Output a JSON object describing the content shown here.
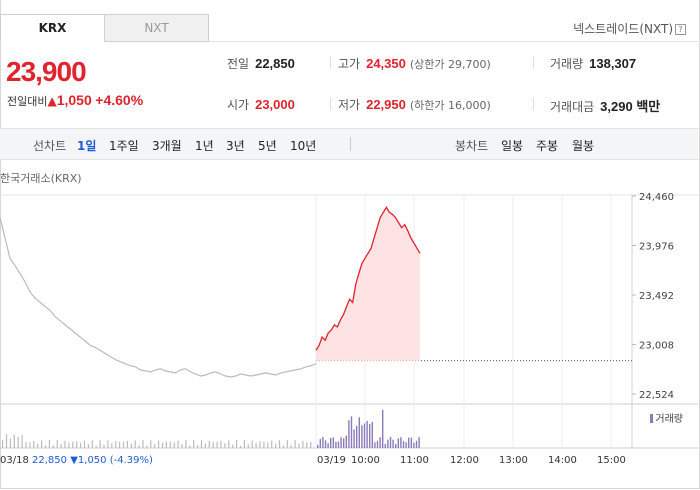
{
  "tabs": [
    {
      "label": "KRX",
      "active": true
    },
    {
      "label": "NXT",
      "active": false
    }
  ],
  "nxt_link": {
    "label": "넥스트레이드(NXT)",
    "help_icon": "question-icon"
  },
  "price": {
    "current": "23,900",
    "change_label": "전일대비",
    "change_icon": "up-triangle-icon",
    "change_amount": "1,050",
    "change_pct": "+4.60%"
  },
  "stats": {
    "prev_close": {
      "label": "전일",
      "value": "22,850"
    },
    "high": {
      "label": "고가",
      "value": "24,350",
      "sub": "(상한가 29,700)"
    },
    "volume": {
      "label": "거래량",
      "value": "138,307"
    },
    "open": {
      "label": "시가",
      "value": "23,000"
    },
    "low": {
      "label": "저가",
      "value": "22,950",
      "sub": "(하한가 16,000)"
    },
    "amount": {
      "label": "거래대금",
      "value": "3,290 백만"
    }
  },
  "toolbar": {
    "line_label": "선차트",
    "periods": [
      "1일",
      "1주일",
      "3개월",
      "1년",
      "3년",
      "5년",
      "10년"
    ],
    "active_period": "1일",
    "candle_label": "봉차트",
    "candles": [
      "일봉",
      "주봉",
      "월봉"
    ]
  },
  "exchange_label": "한국거래소(KRX)",
  "colors": {
    "up": "#e0232d",
    "down": "#1f5bd6",
    "prev_line": "#bbbbbb",
    "volume": "#8a7ab8"
  },
  "prev_day": {
    "date": "03/18",
    "close": "22,850",
    "change_icon": "down-triangle-icon",
    "change": "1,050",
    "change_pct": "(-4.39%)"
  },
  "volume_legend": "거래량",
  "chart_data": {
    "type": "line",
    "y_ticks": [
      "24,460",
      "23,976",
      "23,492",
      "23,008",
      "22,524"
    ],
    "ylim": [
      22524,
      24460
    ],
    "x_labels": [
      "03/19",
      "10:00",
      "11:00",
      "12:00",
      "13:00",
      "14:00",
      "15:00"
    ],
    "series": [
      {
        "name": "03/18",
        "values": [
          24250,
          24050,
          23850,
          23780,
          23700,
          23620,
          23520,
          23460,
          23420,
          23380,
          23340,
          23280,
          23240,
          23200,
          23160,
          23120,
          23080,
          23040,
          23000,
          22980,
          22950,
          22920,
          22890,
          22860,
          22840,
          22820,
          22800,
          22790,
          22760,
          22750,
          22740,
          22760,
          22770,
          22750,
          22740,
          22730,
          22760,
          22770,
          22740,
          22720,
          22700,
          22710,
          22730,
          22740,
          22720,
          22700,
          22690,
          22700,
          22720,
          22710,
          22700,
          22710,
          22720,
          22730,
          22720,
          22710,
          22730,
          22740,
          22750,
          22760,
          22770,
          22790,
          22800,
          22820
        ]
      },
      {
        "name": "03/19",
        "values": [
          22950,
          23000,
          23080,
          23050,
          23120,
          23150,
          23200,
          23180,
          23250,
          23300,
          23380,
          23450,
          23420,
          23600,
          23700,
          23800,
          23850,
          23900,
          23950,
          24050,
          24150,
          24250,
          24300,
          24350,
          24300,
          24280,
          24250,
          24200,
          24150,
          24180,
          24120,
          24050,
          24000,
          23950,
          23900
        ]
      }
    ],
    "prev_close": 22850,
    "grid": true
  }
}
